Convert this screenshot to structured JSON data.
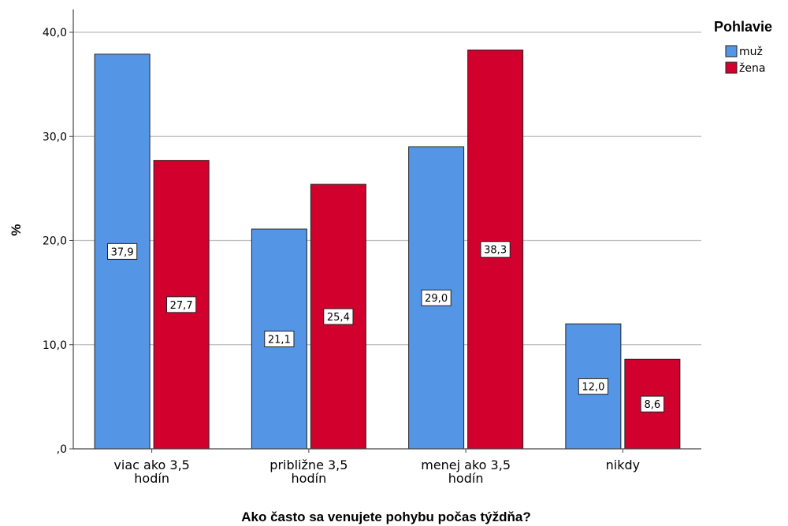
{
  "chart_data": {
    "type": "bar",
    "title": "",
    "xlabel": "Ako často sa venujete pohybu počas týždňa?",
    "ylabel": "%",
    "categories": [
      [
        "viac ako 3,5",
        "hodín"
      ],
      [
        "približne 3,5",
        "hodín"
      ],
      [
        "menej ako 3,5",
        "hodín"
      ],
      [
        "nikdy"
      ]
    ],
    "series": [
      {
        "name": "muž",
        "color": "#5495e6",
        "values": [
          37.9,
          21.1,
          29.0,
          12.0
        ],
        "labels": [
          "37,9",
          "21,1",
          "29,0",
          "12,0"
        ]
      },
      {
        "name": "žena",
        "color": "#d2002d",
        "values": [
          27.7,
          25.4,
          38.3,
          8.6
        ],
        "labels": [
          "27,7",
          "25,4",
          "38,3",
          "8,6"
        ]
      }
    ],
    "ylim": [
      0,
      40
    ],
    "yticks": [
      0,
      10,
      20,
      30,
      40
    ],
    "ytick_labels": [
      ",0",
      "10,0",
      "20,0",
      "30,0",
      "40,0"
    ],
    "grid": true,
    "legend": {
      "title": "Pohlavie",
      "placement": "top-right"
    }
  }
}
